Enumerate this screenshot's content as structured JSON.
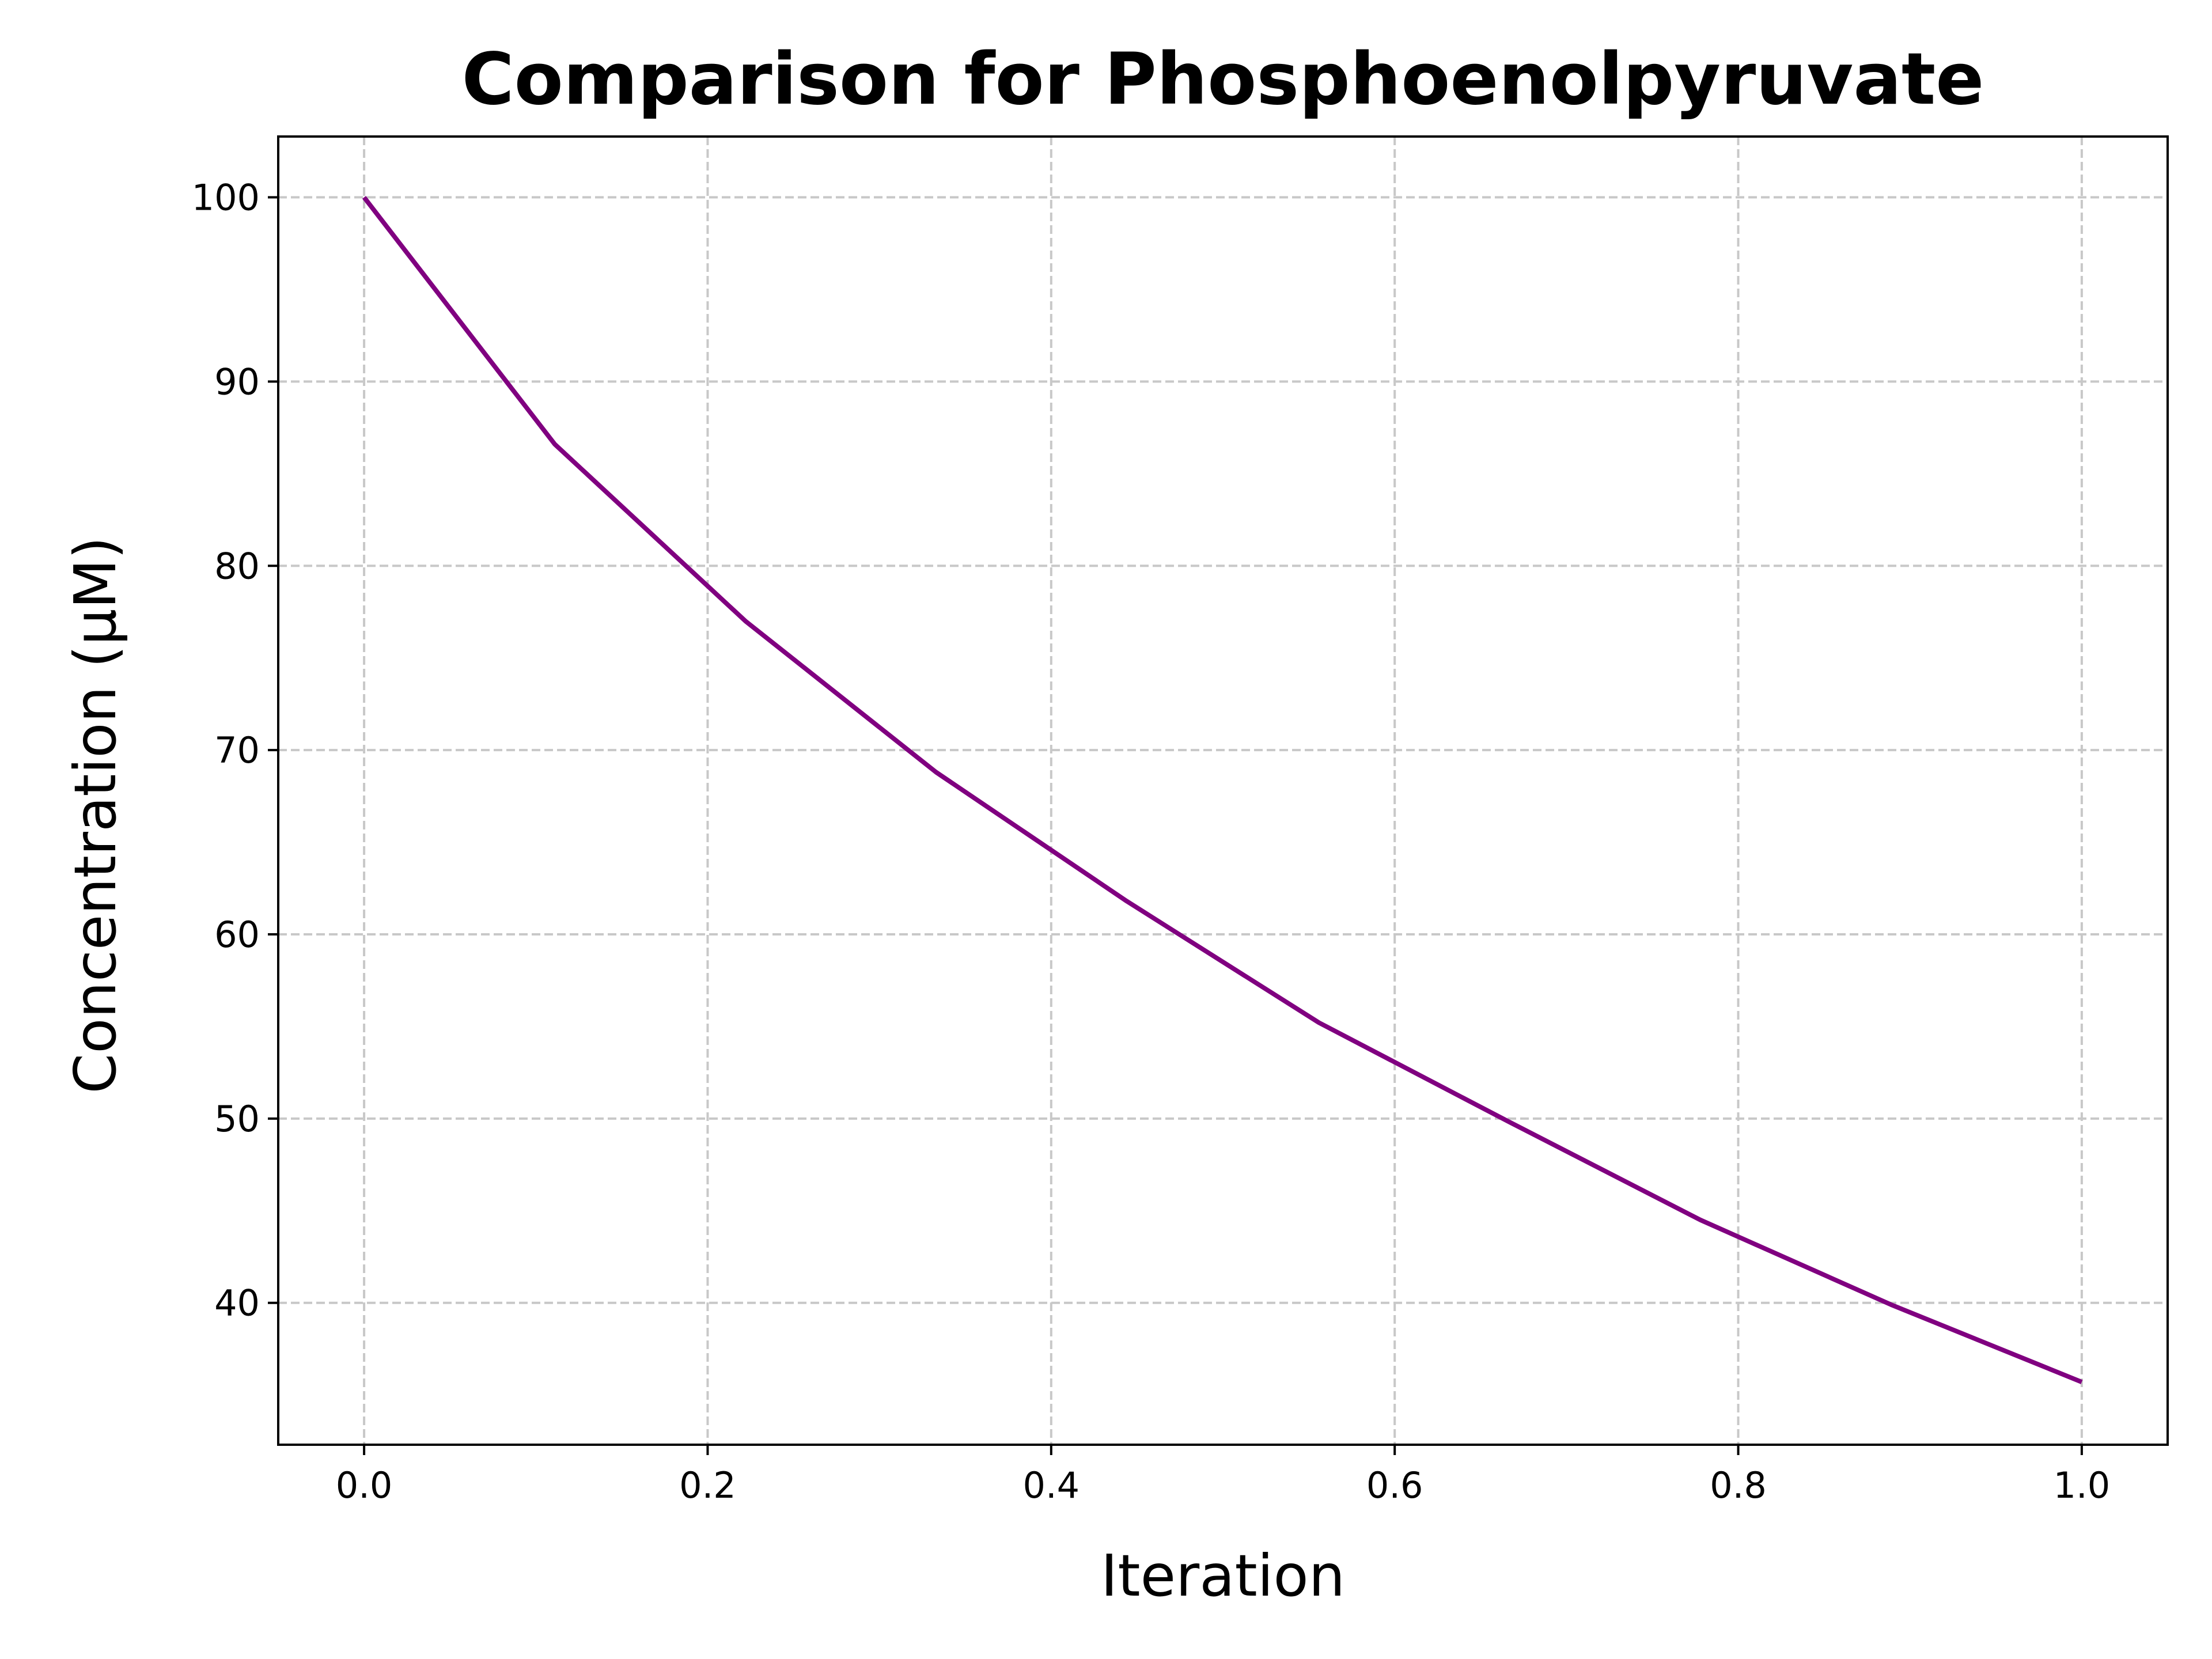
{
  "chart_data": {
    "type": "line",
    "title": "Comparison for Phosphoenolpyruvate",
    "xlabel": "Iteration",
    "ylabel": "Concentration (μM)",
    "xlim": [
      -0.05,
      1.05
    ],
    "ylim": [
      32.3,
      103.3
    ],
    "xticks": [
      0.0,
      0.2,
      0.4,
      0.6,
      0.8,
      1.0
    ],
    "xtick_labels": [
      "0.0",
      "0.2",
      "0.4",
      "0.6",
      "0.8",
      "1.0"
    ],
    "yticks": [
      40,
      50,
      60,
      70,
      80,
      90,
      100
    ],
    "ytick_labels": [
      "40",
      "50",
      "60",
      "70",
      "80",
      "90",
      "100"
    ],
    "grid": true,
    "series": [
      {
        "color": "#800080",
        "x": [
          0.0,
          0.111,
          0.222,
          0.333,
          0.444,
          0.556,
          0.667,
          0.778,
          0.889,
          1.0
        ],
        "y": [
          100.0,
          86.6,
          77.0,
          68.8,
          61.8,
          55.2,
          49.8,
          44.5,
          39.9,
          35.7
        ]
      }
    ]
  }
}
